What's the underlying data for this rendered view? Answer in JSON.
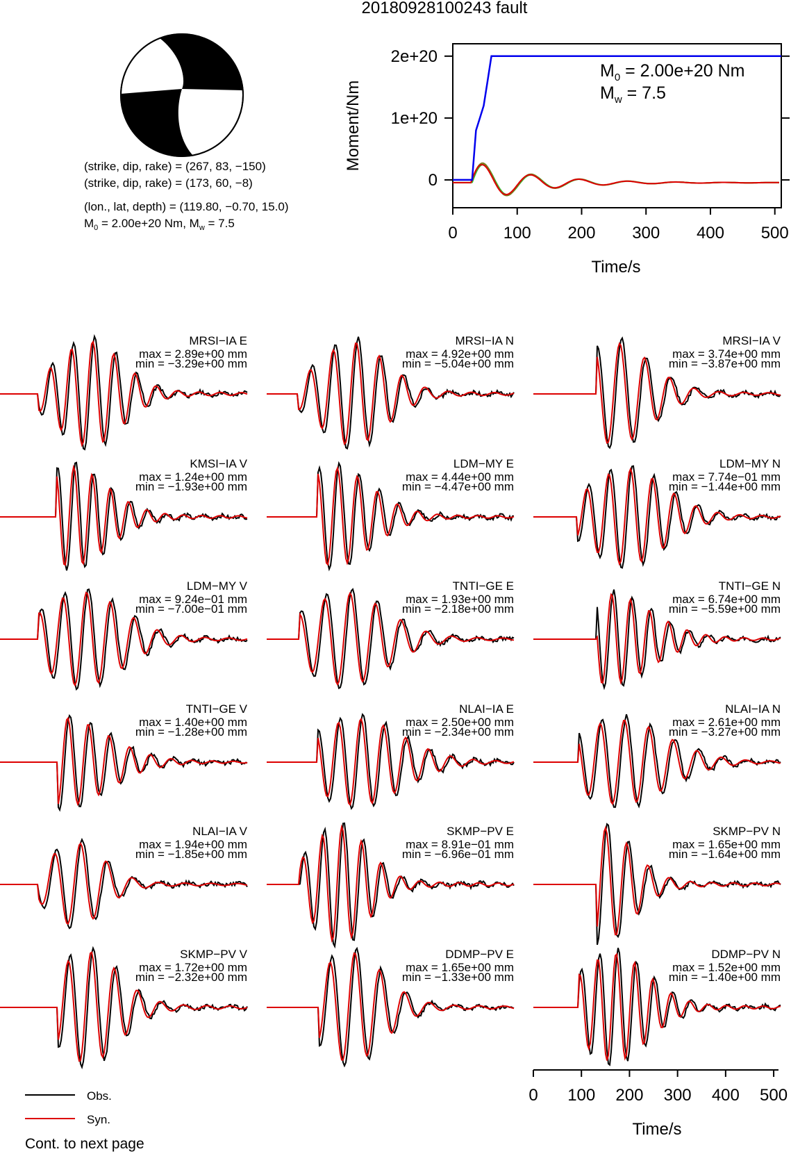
{
  "page": {
    "title": "20180928100243 fault",
    "footer": "Cont. to next page"
  },
  "mechanism": {
    "line1": "(strike, dip, rake) = (267, 83, −150)",
    "line2": "(strike, dip, rake) = (173, 60, −8)",
    "line3": "(lon., lat, depth) = (119.80, −0.70, 15.0)",
    "line4_prefix": "M",
    "line4_sub0": "0",
    "line4_mid": " = 2.00e+20 Nm, M",
    "line4_subw": "w",
    "line4_end": " = 7.5"
  },
  "legend": {
    "obs_label": "Obs.",
    "syn_label": "Syn.",
    "obs_color": "#000000",
    "syn_color": "#dd0000"
  },
  "colors": {
    "moment_curve": "#0000ee",
    "source_red": "#dd0000",
    "source_green": "#33bb33",
    "source_olive": "#7a7a1a"
  },
  "chart_data": [
    {
      "type": "line",
      "title": "",
      "xlabel": "Time/s",
      "ylabel": "Moment/Nm",
      "xlim": [
        0,
        510
      ],
      "ylim": [
        -4.5e+19,
        2.2e+20
      ],
      "xticks": [
        0,
        100,
        200,
        300,
        400,
        500
      ],
      "xtick_labels": [
        "0",
        "100",
        "200",
        "300",
        "400",
        "500"
      ],
      "yticks": [
        0,
        1e+20,
        2e+20
      ],
      "ytick_labels": [
        "0",
        "1e+20",
        "2e+20"
      ],
      "annotation_m0": {
        "prefix": "M",
        "sub": "0",
        "rest": " = 2.00e+20 Nm"
      },
      "annotation_mw": {
        "prefix": "M",
        "sub": "w",
        "rest": " = 7.5"
      },
      "series": [
        {
          "x": [
            0,
            30,
            36,
            42,
            48,
            54,
            60,
            510
          ],
          "y": [
            0,
            0,
            8e+19,
            1e+20,
            1.2e+20,
            1.6e+20,
            2e+20,
            2e+20
          ]
        }
      ]
    },
    {
      "type": "line",
      "xlabel": "Time/s",
      "xlim": [
        0,
        510
      ],
      "xticks": [
        0,
        100,
        200,
        300,
        400,
        500
      ],
      "xtick_labels": [
        "0",
        "100",
        "200",
        "300",
        "400",
        "500"
      ]
    },
    {
      "type": "line",
      "waveforms": [
        {
          "label": "MRSI−IA E",
          "max": "max = 2.89e+00 mm",
          "min": "min = −3.29e+00 mm"
        },
        {
          "label": "MRSI−IA N",
          "max": "max = 4.92e+00 mm",
          "min": "min = −5.04e+00 mm"
        },
        {
          "label": "MRSI−IA V",
          "max": "max = 3.74e+00 mm",
          "min": "min = −3.87e+00 mm"
        },
        {
          "label": "KMSI−IA V",
          "max": "max = 1.24e+00 mm",
          "min": "min = −1.93e+00 mm"
        },
        {
          "label": "LDM−MY E",
          "max": "max = 4.44e+00 mm",
          "min": "min = −4.47e+00 mm"
        },
        {
          "label": "LDM−MY N",
          "max": "max = 7.74e−01 mm",
          "min": "min = −1.44e+00 mm"
        },
        {
          "label": "LDM−MY V",
          "max": "max = 9.24e−01 mm",
          "min": "min = −7.00e−01 mm"
        },
        {
          "label": "TNTI−GE E",
          "max": "max = 1.93e+00 mm",
          "min": "min = −2.18e+00 mm"
        },
        {
          "label": "TNTI−GE N",
          "max": "max = 6.74e+00 mm",
          "min": "min = −5.59e+00 mm"
        },
        {
          "label": "TNTI−GE V",
          "max": "max = 1.40e+00 mm",
          "min": "min = −1.28e+00 mm"
        },
        {
          "label": "NLAI−IA E",
          "max": "max = 2.50e+00 mm",
          "min": "min = −2.34e+00 mm"
        },
        {
          "label": "NLAI−IA N",
          "max": "max = 2.61e+00 mm",
          "min": "min = −3.27e+00 mm"
        },
        {
          "label": "NLAI−IA V",
          "max": "max = 1.94e+00 mm",
          "min": "min = −1.85e+00 mm"
        },
        {
          "label": "SKMP−PV E",
          "max": "max = 8.91e−01 mm",
          "min": "min = −6.96e−01 mm"
        },
        {
          "label": "SKMP−PV N",
          "max": "max = 1.65e+00 mm",
          "min": "min = −1.64e+00 mm"
        },
        {
          "label": "SKMP−PV V",
          "max": "max = 1.72e+00 mm",
          "min": "min = −2.32e+00 mm"
        },
        {
          "label": "DDMP−PV E",
          "max": "max = 1.65e+00 mm",
          "min": "min = −1.33e+00 mm"
        },
        {
          "label": "DDMP−PV N",
          "max": "max = 1.52e+00 mm",
          "min": "min = −1.40e+00 mm"
        }
      ]
    }
  ]
}
